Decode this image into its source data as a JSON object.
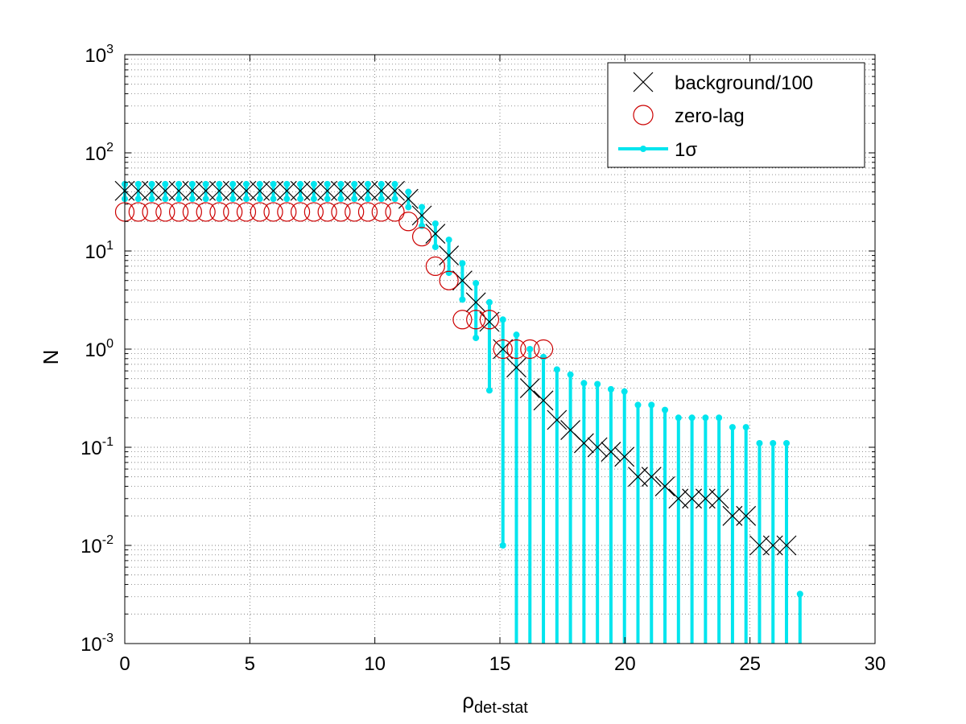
{
  "chart_data": {
    "type": "scatter",
    "title": "",
    "xlabel": "ρ",
    "xlabel_sub": "det-stat",
    "ylabel": "N",
    "xlim": [
      0,
      30
    ],
    "ylim": [
      0.001,
      1000
    ],
    "yscale": "log",
    "grid": "on",
    "legend_position": "top-right",
    "x_ticks": [
      0,
      5,
      10,
      15,
      20,
      25,
      30
    ],
    "x_tick_labels": [
      "0",
      "5",
      "10",
      "15",
      "20",
      "25",
      "30"
    ],
    "y_ticks": [
      {
        "value": 0.001,
        "base": "10",
        "exp": "-3"
      },
      {
        "value": 0.01,
        "base": "10",
        "exp": "-2"
      },
      {
        "value": 0.1,
        "base": "10",
        "exp": "-1"
      },
      {
        "value": 1,
        "base": "10",
        "exp": "0"
      },
      {
        "value": 10,
        "base": "10",
        "exp": "1"
      },
      {
        "value": 100,
        "base": "10",
        "exp": "2"
      },
      {
        "value": 1000,
        "base": "10",
        "exp": "3"
      }
    ],
    "series": [
      {
        "name": "background/100",
        "marker": "x",
        "color": "#000000",
        "points": [
          {
            "x": 0.0,
            "y": 41
          },
          {
            "x": 0.54,
            "y": 41
          },
          {
            "x": 1.08,
            "y": 41
          },
          {
            "x": 1.62,
            "y": 41
          },
          {
            "x": 2.16,
            "y": 41
          },
          {
            "x": 2.7,
            "y": 41
          },
          {
            "x": 3.24,
            "y": 41
          },
          {
            "x": 3.78,
            "y": 41
          },
          {
            "x": 4.32,
            "y": 41
          },
          {
            "x": 4.86,
            "y": 41
          },
          {
            "x": 5.4,
            "y": 41
          },
          {
            "x": 5.94,
            "y": 41
          },
          {
            "x": 6.48,
            "y": 41
          },
          {
            "x": 7.02,
            "y": 41
          },
          {
            "x": 7.56,
            "y": 41
          },
          {
            "x": 8.1,
            "y": 41
          },
          {
            "x": 8.64,
            "y": 41
          },
          {
            "x": 9.18,
            "y": 41
          },
          {
            "x": 9.72,
            "y": 41
          },
          {
            "x": 10.26,
            "y": 41
          },
          {
            "x": 10.8,
            "y": 41
          },
          {
            "x": 11.34,
            "y": 34
          },
          {
            "x": 11.88,
            "y": 23
          },
          {
            "x": 12.42,
            "y": 15
          },
          {
            "x": 12.96,
            "y": 9
          },
          {
            "x": 13.5,
            "y": 5
          },
          {
            "x": 14.04,
            "y": 3
          },
          {
            "x": 14.58,
            "y": 1.9
          },
          {
            "x": 15.12,
            "y": 1.0
          },
          {
            "x": 15.66,
            "y": 0.65
          },
          {
            "x": 16.2,
            "y": 0.4
          },
          {
            "x": 16.74,
            "y": 0.3
          },
          {
            "x": 17.28,
            "y": 0.19
          },
          {
            "x": 17.82,
            "y": 0.15
          },
          {
            "x": 18.36,
            "y": 0.11
          },
          {
            "x": 18.9,
            "y": 0.1
          },
          {
            "x": 19.44,
            "y": 0.09
          },
          {
            "x": 19.98,
            "y": 0.08
          },
          {
            "x": 20.52,
            "y": 0.05
          },
          {
            "x": 21.06,
            "y": 0.05
          },
          {
            "x": 21.6,
            "y": 0.04
          },
          {
            "x": 22.14,
            "y": 0.03
          },
          {
            "x": 22.68,
            "y": 0.03
          },
          {
            "x": 23.22,
            "y": 0.03
          },
          {
            "x": 23.76,
            "y": 0.03
          },
          {
            "x": 24.3,
            "y": 0.02
          },
          {
            "x": 24.84,
            "y": 0.02
          },
          {
            "x": 25.38,
            "y": 0.01
          },
          {
            "x": 25.92,
            "y": 0.01
          },
          {
            "x": 26.46,
            "y": 0.01
          }
        ]
      },
      {
        "name": "zero-lag",
        "marker": "o",
        "color": "#cc0000",
        "points": [
          {
            "x": 0.0,
            "y": 25
          },
          {
            "x": 0.54,
            "y": 25
          },
          {
            "x": 1.08,
            "y": 25
          },
          {
            "x": 1.62,
            "y": 25
          },
          {
            "x": 2.16,
            "y": 25
          },
          {
            "x": 2.7,
            "y": 25
          },
          {
            "x": 3.24,
            "y": 25
          },
          {
            "x": 3.78,
            "y": 25
          },
          {
            "x": 4.32,
            "y": 25
          },
          {
            "x": 4.86,
            "y": 25
          },
          {
            "x": 5.4,
            "y": 25
          },
          {
            "x": 5.94,
            "y": 25
          },
          {
            "x": 6.48,
            "y": 25
          },
          {
            "x": 7.02,
            "y": 25
          },
          {
            "x": 7.56,
            "y": 25
          },
          {
            "x": 8.1,
            "y": 25
          },
          {
            "x": 8.64,
            "y": 25
          },
          {
            "x": 9.18,
            "y": 25
          },
          {
            "x": 9.72,
            "y": 25
          },
          {
            "x": 10.26,
            "y": 25
          },
          {
            "x": 10.8,
            "y": 25
          },
          {
            "x": 11.34,
            "y": 20
          },
          {
            "x": 11.88,
            "y": 14
          },
          {
            "x": 12.42,
            "y": 7
          },
          {
            "x": 12.96,
            "y": 5
          },
          {
            "x": 13.5,
            "y": 2
          },
          {
            "x": 14.04,
            "y": 2
          },
          {
            "x": 14.58,
            "y": 2
          },
          {
            "x": 15.12,
            "y": 1
          },
          {
            "x": 15.66,
            "y": 1
          },
          {
            "x": 16.2,
            "y": 1
          },
          {
            "x": 16.74,
            "y": 1
          }
        ]
      },
      {
        "name": "1σ",
        "marker": "errorbar",
        "color": "#00e5ee",
        "bars": [
          {
            "x": 0.0,
            "lo": 34,
            "hi": 48
          },
          {
            "x": 0.54,
            "lo": 34,
            "hi": 48
          },
          {
            "x": 1.08,
            "lo": 34,
            "hi": 48
          },
          {
            "x": 1.62,
            "lo": 34,
            "hi": 48
          },
          {
            "x": 2.16,
            "lo": 34,
            "hi": 48
          },
          {
            "x": 2.7,
            "lo": 34,
            "hi": 48
          },
          {
            "x": 3.24,
            "lo": 34,
            "hi": 48
          },
          {
            "x": 3.78,
            "lo": 34,
            "hi": 48
          },
          {
            "x": 4.32,
            "lo": 34,
            "hi": 48
          },
          {
            "x": 4.86,
            "lo": 34,
            "hi": 48
          },
          {
            "x": 5.4,
            "lo": 34,
            "hi": 48
          },
          {
            "x": 5.94,
            "lo": 34,
            "hi": 48
          },
          {
            "x": 6.48,
            "lo": 34,
            "hi": 48
          },
          {
            "x": 7.02,
            "lo": 34,
            "hi": 48
          },
          {
            "x": 7.56,
            "lo": 34,
            "hi": 48
          },
          {
            "x": 8.1,
            "lo": 34,
            "hi": 48
          },
          {
            "x": 8.64,
            "lo": 34,
            "hi": 48
          },
          {
            "x": 9.18,
            "lo": 34,
            "hi": 48
          },
          {
            "x": 9.72,
            "lo": 34,
            "hi": 48
          },
          {
            "x": 10.26,
            "lo": 34,
            "hi": 48
          },
          {
            "x": 10.8,
            "lo": 34,
            "hi": 48
          },
          {
            "x": 11.34,
            "lo": 28,
            "hi": 40
          },
          {
            "x": 11.88,
            "lo": 18,
            "hi": 28
          },
          {
            "x": 12.42,
            "lo": 11,
            "hi": 19
          },
          {
            "x": 12.96,
            "lo": 6,
            "hi": 13
          },
          {
            "x": 13.5,
            "lo": 3.2,
            "hi": 7.5
          },
          {
            "x": 14.04,
            "lo": 1.3,
            "hi": 4.7
          },
          {
            "x": 14.58,
            "lo": 0.38,
            "hi": 3.0
          },
          {
            "x": 15.12,
            "lo": 0.01,
            "hi": 2.0
          },
          {
            "x": 15.66,
            "lo": 0.001,
            "hi": 1.4
          },
          {
            "x": 16.2,
            "lo": 0.001,
            "hi": 1.0
          },
          {
            "x": 16.74,
            "lo": 0.001,
            "hi": 0.83
          },
          {
            "x": 17.28,
            "lo": 0.001,
            "hi": 0.62
          },
          {
            "x": 17.82,
            "lo": 0.001,
            "hi": 0.55
          },
          {
            "x": 18.36,
            "lo": 0.001,
            "hi": 0.45
          },
          {
            "x": 18.9,
            "lo": 0.001,
            "hi": 0.44
          },
          {
            "x": 19.44,
            "lo": 0.001,
            "hi": 0.39
          },
          {
            "x": 19.98,
            "lo": 0.001,
            "hi": 0.37
          },
          {
            "x": 20.52,
            "lo": 0.001,
            "hi": 0.27
          },
          {
            "x": 21.06,
            "lo": 0.001,
            "hi": 0.27
          },
          {
            "x": 21.6,
            "lo": 0.001,
            "hi": 0.24
          },
          {
            "x": 22.14,
            "lo": 0.001,
            "hi": 0.2
          },
          {
            "x": 22.68,
            "lo": 0.001,
            "hi": 0.2
          },
          {
            "x": 23.22,
            "lo": 0.001,
            "hi": 0.2
          },
          {
            "x": 23.76,
            "lo": 0.001,
            "hi": 0.2
          },
          {
            "x": 24.3,
            "lo": 0.001,
            "hi": 0.16
          },
          {
            "x": 24.84,
            "lo": 0.001,
            "hi": 0.16
          },
          {
            "x": 25.38,
            "lo": 0.001,
            "hi": 0.11
          },
          {
            "x": 25.92,
            "lo": 0.001,
            "hi": 0.11
          },
          {
            "x": 26.46,
            "lo": 0.001,
            "hi": 0.11
          },
          {
            "x": 27.0,
            "lo": 0.001,
            "hi": 0.0032
          }
        ]
      }
    ]
  }
}
